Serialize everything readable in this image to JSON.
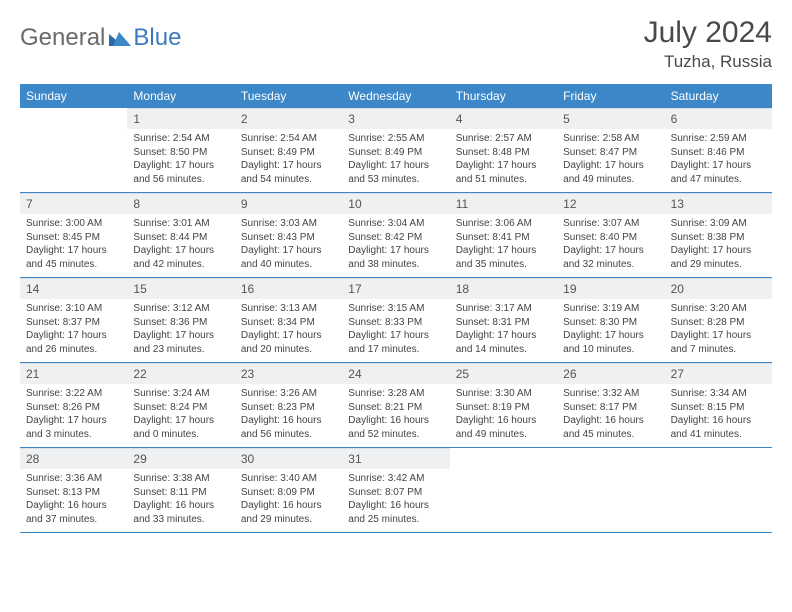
{
  "brand": {
    "part1": "General",
    "part2": "Blue"
  },
  "title": "July 2024",
  "location": "Tuzha, Russia",
  "colors": {
    "header_bg": "#3b87c8",
    "header_text": "#ffffff",
    "daynum_bg": "#eef0f2",
    "border": "#3b87c8",
    "logo_gray": "#6a6a6a",
    "logo_blue": "#3b7bbf",
    "text": "#4a4a4a"
  },
  "day_labels": [
    "Sunday",
    "Monday",
    "Tuesday",
    "Wednesday",
    "Thursday",
    "Friday",
    "Saturday"
  ],
  "weeks": [
    [
      {
        "n": "",
        "sr": "",
        "ss": "",
        "dl": ""
      },
      {
        "n": "1",
        "sr": "Sunrise: 2:54 AM",
        "ss": "Sunset: 8:50 PM",
        "dl": "Daylight: 17 hours and 56 minutes."
      },
      {
        "n": "2",
        "sr": "Sunrise: 2:54 AM",
        "ss": "Sunset: 8:49 PM",
        "dl": "Daylight: 17 hours and 54 minutes."
      },
      {
        "n": "3",
        "sr": "Sunrise: 2:55 AM",
        "ss": "Sunset: 8:49 PM",
        "dl": "Daylight: 17 hours and 53 minutes."
      },
      {
        "n": "4",
        "sr": "Sunrise: 2:57 AM",
        "ss": "Sunset: 8:48 PM",
        "dl": "Daylight: 17 hours and 51 minutes."
      },
      {
        "n": "5",
        "sr": "Sunrise: 2:58 AM",
        "ss": "Sunset: 8:47 PM",
        "dl": "Daylight: 17 hours and 49 minutes."
      },
      {
        "n": "6",
        "sr": "Sunrise: 2:59 AM",
        "ss": "Sunset: 8:46 PM",
        "dl": "Daylight: 17 hours and 47 minutes."
      }
    ],
    [
      {
        "n": "7",
        "sr": "Sunrise: 3:00 AM",
        "ss": "Sunset: 8:45 PM",
        "dl": "Daylight: 17 hours and 45 minutes."
      },
      {
        "n": "8",
        "sr": "Sunrise: 3:01 AM",
        "ss": "Sunset: 8:44 PM",
        "dl": "Daylight: 17 hours and 42 minutes."
      },
      {
        "n": "9",
        "sr": "Sunrise: 3:03 AM",
        "ss": "Sunset: 8:43 PM",
        "dl": "Daylight: 17 hours and 40 minutes."
      },
      {
        "n": "10",
        "sr": "Sunrise: 3:04 AM",
        "ss": "Sunset: 8:42 PM",
        "dl": "Daylight: 17 hours and 38 minutes."
      },
      {
        "n": "11",
        "sr": "Sunrise: 3:06 AM",
        "ss": "Sunset: 8:41 PM",
        "dl": "Daylight: 17 hours and 35 minutes."
      },
      {
        "n": "12",
        "sr": "Sunrise: 3:07 AM",
        "ss": "Sunset: 8:40 PM",
        "dl": "Daylight: 17 hours and 32 minutes."
      },
      {
        "n": "13",
        "sr": "Sunrise: 3:09 AM",
        "ss": "Sunset: 8:38 PM",
        "dl": "Daylight: 17 hours and 29 minutes."
      }
    ],
    [
      {
        "n": "14",
        "sr": "Sunrise: 3:10 AM",
        "ss": "Sunset: 8:37 PM",
        "dl": "Daylight: 17 hours and 26 minutes."
      },
      {
        "n": "15",
        "sr": "Sunrise: 3:12 AM",
        "ss": "Sunset: 8:36 PM",
        "dl": "Daylight: 17 hours and 23 minutes."
      },
      {
        "n": "16",
        "sr": "Sunrise: 3:13 AM",
        "ss": "Sunset: 8:34 PM",
        "dl": "Daylight: 17 hours and 20 minutes."
      },
      {
        "n": "17",
        "sr": "Sunrise: 3:15 AM",
        "ss": "Sunset: 8:33 PM",
        "dl": "Daylight: 17 hours and 17 minutes."
      },
      {
        "n": "18",
        "sr": "Sunrise: 3:17 AM",
        "ss": "Sunset: 8:31 PM",
        "dl": "Daylight: 17 hours and 14 minutes."
      },
      {
        "n": "19",
        "sr": "Sunrise: 3:19 AM",
        "ss": "Sunset: 8:30 PM",
        "dl": "Daylight: 17 hours and 10 minutes."
      },
      {
        "n": "20",
        "sr": "Sunrise: 3:20 AM",
        "ss": "Sunset: 8:28 PM",
        "dl": "Daylight: 17 hours and 7 minutes."
      }
    ],
    [
      {
        "n": "21",
        "sr": "Sunrise: 3:22 AM",
        "ss": "Sunset: 8:26 PM",
        "dl": "Daylight: 17 hours and 3 minutes."
      },
      {
        "n": "22",
        "sr": "Sunrise: 3:24 AM",
        "ss": "Sunset: 8:24 PM",
        "dl": "Daylight: 17 hours and 0 minutes."
      },
      {
        "n": "23",
        "sr": "Sunrise: 3:26 AM",
        "ss": "Sunset: 8:23 PM",
        "dl": "Daylight: 16 hours and 56 minutes."
      },
      {
        "n": "24",
        "sr": "Sunrise: 3:28 AM",
        "ss": "Sunset: 8:21 PM",
        "dl": "Daylight: 16 hours and 52 minutes."
      },
      {
        "n": "25",
        "sr": "Sunrise: 3:30 AM",
        "ss": "Sunset: 8:19 PM",
        "dl": "Daylight: 16 hours and 49 minutes."
      },
      {
        "n": "26",
        "sr": "Sunrise: 3:32 AM",
        "ss": "Sunset: 8:17 PM",
        "dl": "Daylight: 16 hours and 45 minutes."
      },
      {
        "n": "27",
        "sr": "Sunrise: 3:34 AM",
        "ss": "Sunset: 8:15 PM",
        "dl": "Daylight: 16 hours and 41 minutes."
      }
    ],
    [
      {
        "n": "28",
        "sr": "Sunrise: 3:36 AM",
        "ss": "Sunset: 8:13 PM",
        "dl": "Daylight: 16 hours and 37 minutes."
      },
      {
        "n": "29",
        "sr": "Sunrise: 3:38 AM",
        "ss": "Sunset: 8:11 PM",
        "dl": "Daylight: 16 hours and 33 minutes."
      },
      {
        "n": "30",
        "sr": "Sunrise: 3:40 AM",
        "ss": "Sunset: 8:09 PM",
        "dl": "Daylight: 16 hours and 29 minutes."
      },
      {
        "n": "31",
        "sr": "Sunrise: 3:42 AM",
        "ss": "Sunset: 8:07 PM",
        "dl": "Daylight: 16 hours and 25 minutes."
      },
      {
        "n": "",
        "sr": "",
        "ss": "",
        "dl": ""
      },
      {
        "n": "",
        "sr": "",
        "ss": "",
        "dl": ""
      },
      {
        "n": "",
        "sr": "",
        "ss": "",
        "dl": ""
      }
    ]
  ]
}
